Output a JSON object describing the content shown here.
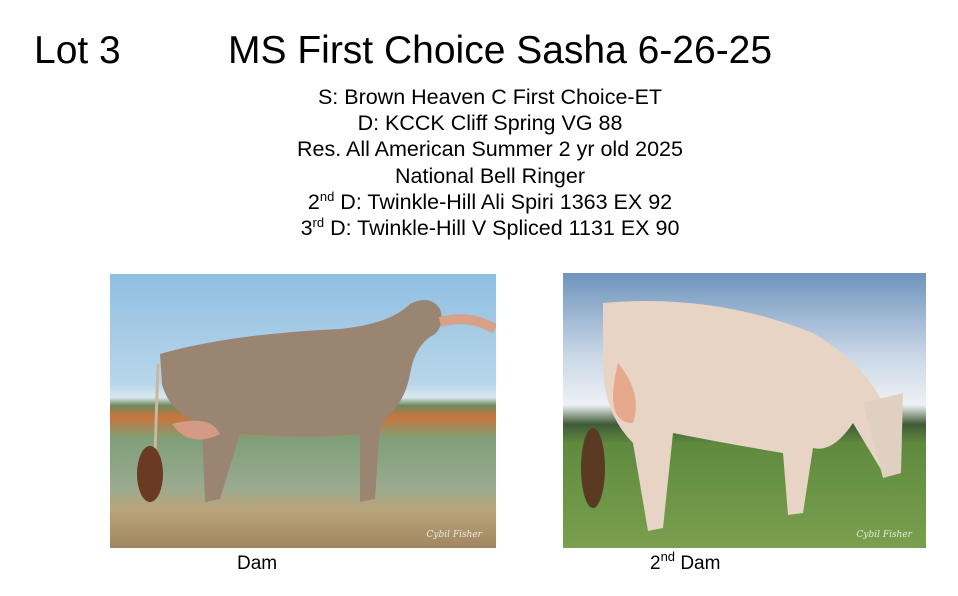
{
  "lot": "Lot 3",
  "title": "MS First Choice Sasha 6-26-25",
  "pedigree": {
    "sire": "S: Brown Heaven C First Choice-ET",
    "dam": "D: KCCK Cliff Spring VG 88",
    "award": "Res. All American Summer 2 yr old 2025",
    "honor": "National Bell Ringer",
    "second_dam": {
      "ordinal": "2",
      "suffix": "nd",
      "text": " D: Twinkle-Hill Ali Spiri 1363 EX 92"
    },
    "third_dam": {
      "ordinal": "3",
      "suffix": "rd",
      "text": " D: Twinkle-Hill V Spliced 1131 EX 90"
    }
  },
  "photos": [
    {
      "caption": "Dam",
      "watermark": "Cybil Fisher"
    },
    {
      "caption_ordinal": "2",
      "caption_suffix": "nd",
      "caption_text": " Dam",
      "watermark": "Cybil Fisher"
    }
  ]
}
